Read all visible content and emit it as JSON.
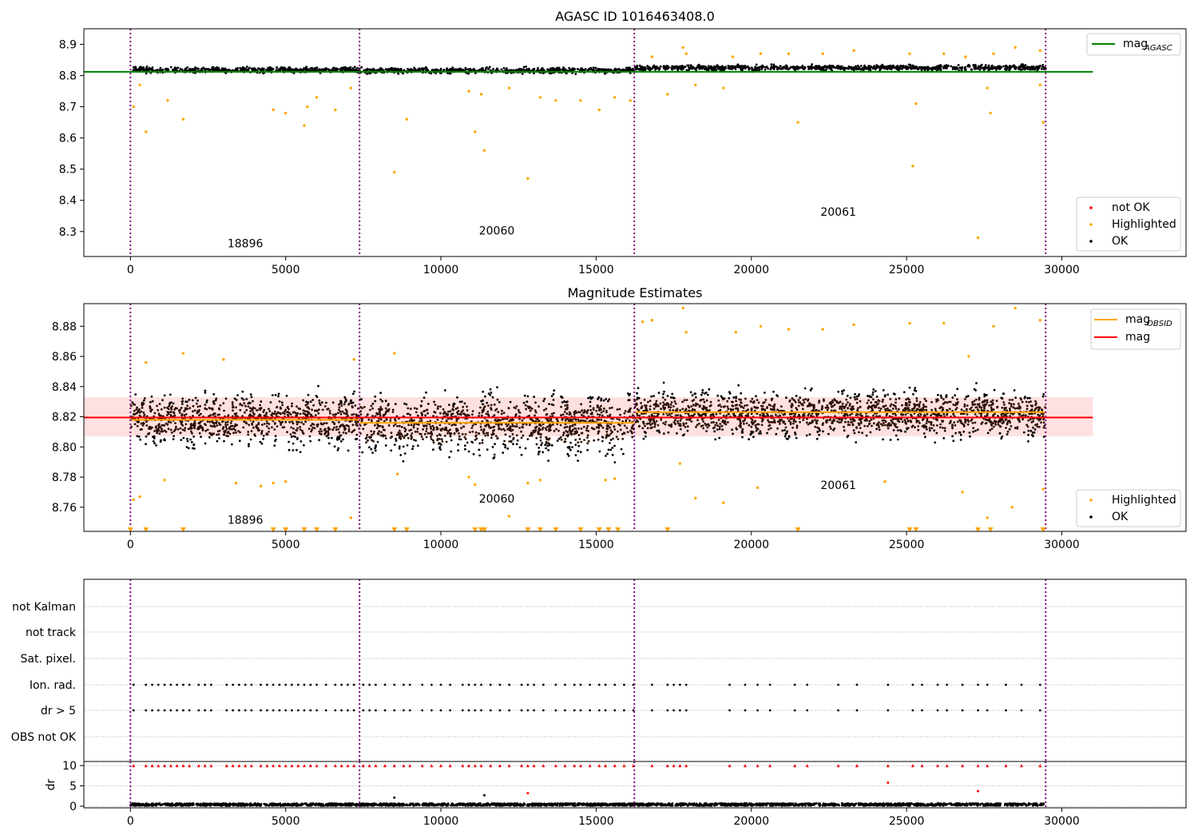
{
  "chart_data": [
    {
      "type": "scatter",
      "title": "AGASC ID 1016463408.0",
      "xlim": [
        -1500,
        34000
      ],
      "ylim": [
        8.22,
        8.95
      ],
      "x_ticks": [
        0,
        5000,
        10000,
        15000,
        20000,
        25000,
        30000
      ],
      "y_ticks": [
        8.3,
        8.4,
        8.5,
        8.6,
        8.7,
        8.8,
        8.9
      ],
      "y_tick_labels": [
        "8.3",
        "8.4",
        "8.5",
        "8.6",
        "8.7",
        "8.8",
        "8.9"
      ],
      "obsid_boundaries": [
        0,
        7380,
        16230,
        29480
      ],
      "obsid_labels": [
        {
          "label": "18896",
          "x": 3700,
          "y": 8.25
        },
        {
          "label": "20060",
          "x": 11800,
          "y": 8.29
        },
        {
          "label": "20061",
          "x": 22800,
          "y": 8.35
        }
      ],
      "reference_lines": [
        {
          "name": "mag_AGASC",
          "y": 8.812,
          "x": [
            -1500,
            31000
          ],
          "color": "#008000"
        }
      ],
      "legend_lines": [
        {
          "label": "mag",
          "sub": "AGASC",
          "color": "#008000"
        }
      ],
      "legend_points": [
        {
          "label": "not OK",
          "color": "#ff0000"
        },
        {
          "label": "Highlighted",
          "color": "#ffa500"
        },
        {
          "label": "OK",
          "color": "#000000"
        }
      ],
      "ok_band": {
        "segments": [
          {
            "x": [
              0,
              7380
            ],
            "center": 8.818,
            "spread": 0.012
          },
          {
            "x": [
              7380,
              16230
            ],
            "center": 8.816,
            "spread": 0.012
          },
          {
            "x": [
              16230,
              29480
            ],
            "center": 8.825,
            "spread": 0.012
          }
        ]
      },
      "highlighted_points": [
        [
          100,
          8.7
        ],
        [
          300,
          8.77
        ],
        [
          500,
          8.62
        ],
        [
          1200,
          8.72
        ],
        [
          1700,
          8.66
        ],
        [
          4600,
          8.69
        ],
        [
          5000,
          8.68
        ],
        [
          5600,
          8.64
        ],
        [
          5700,
          8.7
        ],
        [
          6000,
          8.73
        ],
        [
          6600,
          8.69
        ],
        [
          7100,
          8.76
        ],
        [
          8500,
          8.49
        ],
        [
          8900,
          8.66
        ],
        [
          10900,
          8.75
        ],
        [
          11100,
          8.62
        ],
        [
          11400,
          8.56
        ],
        [
          11300,
          8.74
        ],
        [
          12200,
          8.76
        ],
        [
          12800,
          8.47
        ],
        [
          13200,
          8.73
        ],
        [
          13700,
          8.72
        ],
        [
          14500,
          8.72
        ],
        [
          15100,
          8.69
        ],
        [
          15600,
          8.73
        ],
        [
          16100,
          8.72
        ],
        [
          17300,
          8.74
        ],
        [
          18200,
          8.77
        ],
        [
          19100,
          8.76
        ],
        [
          21500,
          8.65
        ],
        [
          25300,
          8.71
        ],
        [
          25200,
          8.51
        ],
        [
          27300,
          8.28
        ],
        [
          27600,
          8.76
        ],
        [
          27700,
          8.68
        ],
        [
          29300,
          8.77
        ],
        [
          29400,
          8.65
        ],
        [
          16800,
          8.86
        ],
        [
          17800,
          8.89
        ],
        [
          17900,
          8.87
        ],
        [
          19400,
          8.86
        ],
        [
          20300,
          8.87
        ],
        [
          21200,
          8.87
        ],
        [
          22300,
          8.87
        ],
        [
          23300,
          8.88
        ],
        [
          25100,
          8.87
        ],
        [
          26200,
          8.87
        ],
        [
          26900,
          8.86
        ],
        [
          27800,
          8.87
        ],
        [
          28500,
          8.89
        ],
        [
          29300,
          8.88
        ]
      ]
    },
    {
      "type": "scatter",
      "title": "Magnitude Estimates",
      "xlim": [
        -1500,
        34000
      ],
      "ylim": [
        8.744,
        8.895
      ],
      "x_ticks": [
        0,
        5000,
        10000,
        15000,
        20000,
        25000,
        30000
      ],
      "y_ticks": [
        8.76,
        8.78,
        8.8,
        8.82,
        8.84,
        8.86,
        8.88
      ],
      "y_tick_labels": [
        "8.76",
        "8.78",
        "8.80",
        "8.82",
        "8.84",
        "8.86",
        "8.88"
      ],
      "obsid_boundaries": [
        0,
        7380,
        16230,
        29480
      ],
      "obsid_labels": [
        {
          "label": "18896",
          "x": 3700,
          "y": 8.749
        },
        {
          "label": "20060",
          "x": 11800,
          "y": 8.763
        },
        {
          "label": "20061",
          "x": 22800,
          "y": 8.772
        }
      ],
      "mag": {
        "y": 8.8195,
        "x": [
          -1500,
          31000
        ],
        "band": [
          8.807,
          8.833
        ],
        "color": "#ff0000"
      },
      "mag_obsid": [
        {
          "x": [
            0,
            7380
          ],
          "y": 8.818
        },
        {
          "x": [
            7380,
            16230
          ],
          "y": 8.816
        },
        {
          "x": [
            16230,
            29480
          ],
          "y": 8.823
        }
      ],
      "legend_lines": [
        {
          "label": "mag",
          "sub": "OBSID",
          "color": "#ffa500"
        },
        {
          "label": "mag",
          "sub": "",
          "color": "#ff0000"
        }
      ],
      "legend_points": [
        {
          "label": "Highlighted",
          "color": "#ffa500"
        },
        {
          "label": "OK",
          "color": "#000000"
        }
      ],
      "ok_band": {
        "segments": [
          {
            "x": [
              0,
              7380
            ],
            "center": 8.818,
            "spread": 0.022
          },
          {
            "x": [
              7380,
              16230
            ],
            "center": 8.815,
            "spread": 0.026
          },
          {
            "x": [
              16230,
              29480
            ],
            "center": 8.822,
            "spread": 0.02
          }
        ]
      },
      "low_markers_x": [
        0,
        500,
        1700,
        4600,
        5000,
        5600,
        6000,
        6600,
        8500,
        8900,
        11100,
        11300,
        11400,
        12800,
        13200,
        13700,
        14500,
        15100,
        15400,
        15700,
        17300,
        21500,
        25100,
        25300,
        27300,
        27700,
        29400
      ],
      "highlighted_points": [
        [
          100,
          8.765
        ],
        [
          300,
          8.767
        ],
        [
          1100,
          8.778
        ],
        [
          3400,
          8.776
        ],
        [
          4200,
          8.774
        ],
        [
          4600,
          8.776
        ],
        [
          5000,
          8.777
        ],
        [
          7100,
          8.753
        ],
        [
          8600,
          8.782
        ],
        [
          10900,
          8.78
        ],
        [
          11100,
          8.775
        ],
        [
          12200,
          8.754
        ],
        [
          12800,
          8.776
        ],
        [
          13200,
          8.778
        ],
        [
          15300,
          8.778
        ],
        [
          15600,
          8.779
        ],
        [
          17700,
          8.789
        ],
        [
          18200,
          8.766
        ],
        [
          19100,
          8.763
        ],
        [
          20200,
          8.773
        ],
        [
          24300,
          8.777
        ],
        [
          26800,
          8.77
        ],
        [
          27600,
          8.753
        ],
        [
          28400,
          8.76
        ],
        [
          29400,
          8.772
        ],
        [
          500,
          8.856
        ],
        [
          1700,
          8.862
        ],
        [
          3000,
          8.858
        ],
        [
          7200,
          8.858
        ],
        [
          8500,
          8.862
        ],
        [
          16500,
          8.883
        ],
        [
          16800,
          8.884
        ],
        [
          17800,
          8.892
        ],
        [
          17900,
          8.876
        ],
        [
          19500,
          8.876
        ],
        [
          20300,
          8.88
        ],
        [
          21200,
          8.878
        ],
        [
          22300,
          8.878
        ],
        [
          23300,
          8.881
        ],
        [
          25100,
          8.882
        ],
        [
          26200,
          8.882
        ],
        [
          27000,
          8.86
        ],
        [
          27800,
          8.88
        ],
        [
          28500,
          8.892
        ],
        [
          29300,
          8.884
        ]
      ]
    },
    {
      "type": "scatter",
      "xlim": [
        -1500,
        34000
      ],
      "x_ticks": [
        0,
        5000,
        10000,
        15000,
        20000,
        25000,
        30000
      ],
      "obsid_boundaries": [
        0,
        7380,
        16230,
        29480
      ],
      "flag_rows": [
        "not Kalman",
        "not track",
        "Sat. pixel.",
        "Ion. rad.",
        "dr > 5",
        "OBS not OK"
      ],
      "flagged_x": [
        100,
        500,
        700,
        900,
        1100,
        1300,
        1500,
        1700,
        1900,
        2200,
        2400,
        2600,
        3100,
        3300,
        3500,
        3700,
        3900,
        4200,
        4400,
        4600,
        4800,
        5000,
        5200,
        5400,
        5600,
        5800,
        6000,
        6300,
        6600,
        6800,
        7000,
        7200,
        7500,
        7700,
        7900,
        8200,
        8500,
        8800,
        9000,
        9400,
        9700,
        10000,
        10300,
        10700,
        10900,
        11100,
        11300,
        11600,
        11900,
        12200,
        12600,
        12800,
        13000,
        13300,
        13700,
        14000,
        14300,
        14500,
        14800,
        15100,
        15300,
        15600,
        15900,
        16200,
        16800,
        17300,
        17500,
        17700,
        17900,
        19300,
        19800,
        20200,
        20600,
        21400,
        21800,
        22800,
        23400,
        24400,
        25200,
        25500,
        26000,
        26300,
        26800,
        27300,
        27600,
        28200,
        28700,
        29300
      ],
      "dr_ylabel": "dr",
      "dr_ylim": [
        -0.4,
        11
      ],
      "dr_ticks": [
        0,
        5,
        10
      ],
      "dr_tick_labels": [
        "0",
        "5",
        "10"
      ],
      "dr_outliers": [
        {
          "x": 8500,
          "y": 2.1,
          "color": "#000000"
        },
        {
          "x": 11400,
          "y": 2.7,
          "color": "#000000"
        },
        {
          "x": 12800,
          "y": 3.2,
          "color": "#ff0000"
        },
        {
          "x": 24400,
          "y": 5.8,
          "color": "#ff0000"
        },
        {
          "x": 27300,
          "y": 3.7,
          "color": "#ff0000"
        }
      ]
    }
  ]
}
